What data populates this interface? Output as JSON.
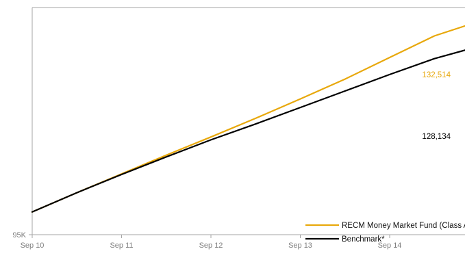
{
  "chart_data": {
    "type": "line",
    "x_ticks": [
      "Sep 10",
      "Sep 11",
      "Sep 12",
      "Sep 13",
      "Sep 14"
    ],
    "y_ticks": [
      "95K"
    ],
    "ylim": [
      95000,
      135000
    ],
    "grid": false,
    "legend_position": "bottom-right",
    "series": [
      {
        "name": "RECM Money Market Fund (Class A)",
        "color": "#e8a80b",
        "end_label": "132,514",
        "x": [
          0,
          0.5,
          1,
          1.5,
          2,
          2.5,
          3,
          3.5,
          4,
          4.5,
          4.99
        ],
        "y": [
          99000,
          102400,
          105700,
          109000,
          112200,
          115500,
          118900,
          122400,
          126200,
          130000,
          132514
        ]
      },
      {
        "name": "Benchmark*",
        "color": "#000000",
        "end_label": "128,134",
        "x": [
          0,
          0.5,
          1,
          1.5,
          2,
          2.5,
          3,
          3.5,
          4,
          4.5,
          4.99
        ],
        "y": [
          99000,
          102400,
          105600,
          108700,
          111700,
          114500,
          117400,
          120300,
          123200,
          126000,
          128134
        ]
      }
    ]
  }
}
